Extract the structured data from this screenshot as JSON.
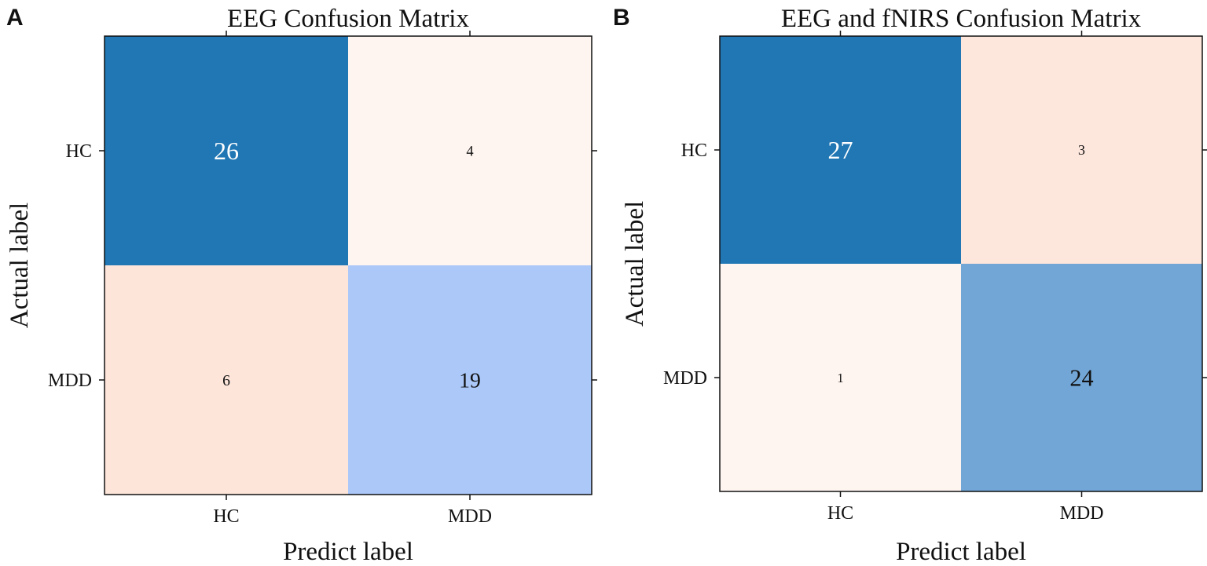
{
  "figure": {
    "panel_labels": [
      "A",
      "B"
    ]
  },
  "chart_data": [
    {
      "type": "heatmap",
      "panel": "A",
      "title": "EEG Confusion Matrix",
      "xlabel": "Predict label",
      "ylabel": "Actual label",
      "x_categories": [
        "HC",
        "MDD"
      ],
      "y_categories": [
        "HC",
        "MDD"
      ],
      "matrix": [
        [
          26,
          4
        ],
        [
          6,
          19
        ]
      ],
      "cell_colors": [
        [
          "#2077b4",
          "#fff5f0"
        ],
        [
          "#fde5da",
          "#abc8f8"
        ]
      ],
      "text_colors": [
        [
          "#ffffff",
          "#111111"
        ],
        [
          "#111111",
          "#111111"
        ]
      ]
    },
    {
      "type": "heatmap",
      "panel": "B",
      "title": "EEG and fNIRS Confusion Matrix",
      "xlabel": "Predict label",
      "ylabel": "Actual label",
      "x_categories": [
        "HC",
        "MDD"
      ],
      "y_categories": [
        "HC",
        "MDD"
      ],
      "matrix": [
        [
          27,
          3
        ],
        [
          1,
          24
        ]
      ],
      "cell_colors": [
        [
          "#2077b4",
          "#fde6dc"
        ],
        [
          "#fff5f0",
          "#72a6d6"
        ]
      ],
      "text_colors": [
        [
          "#ffffff",
          "#111111"
        ],
        [
          "#111111",
          "#111111"
        ]
      ]
    }
  ]
}
